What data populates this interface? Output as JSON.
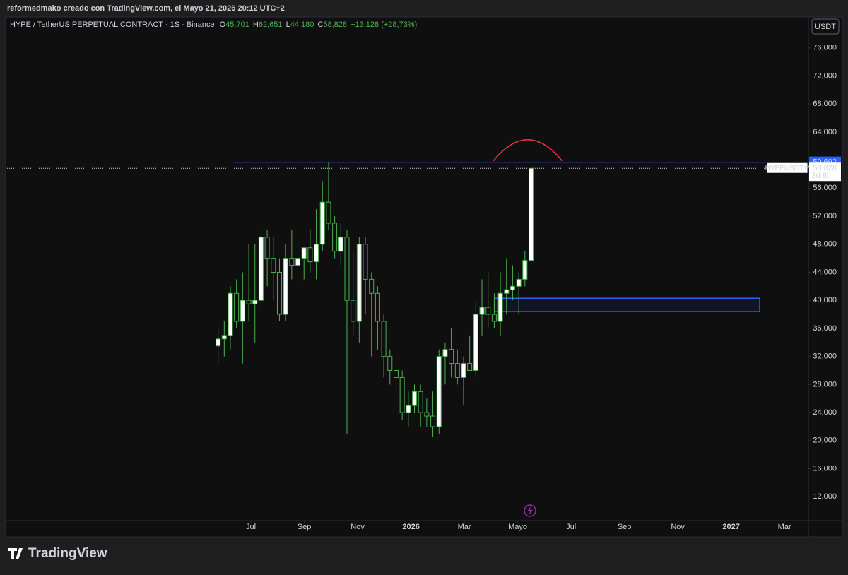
{
  "header": {
    "caption": "reformedmako creado con TradingView.com, el Mayo 21, 2026 20:12 UTC+2",
    "brand": "TradingView"
  },
  "chart_data": {
    "type": "candlestick",
    "legend": {
      "symbol": "HYPE / TetherUS PERPETUAL CONTRACT · 1S · Binance",
      "open_label": "O",
      "open": "45,701",
      "high_label": "H",
      "high": "62,651",
      "low_label": "L",
      "low": "44,180",
      "close_label": "C",
      "close": "58,828",
      "change": "+13,128 (+28,73%)"
    },
    "currency": "USDT",
    "x": [
      4.77,
      5.0,
      5.23,
      5.46,
      5.69,
      5.92,
      6.15,
      6.38,
      6.61,
      6.84,
      7.07,
      7.3,
      7.53,
      7.76,
      7.99,
      8.22,
      8.45,
      8.68,
      8.91,
      9.14,
      9.37,
      9.6,
      9.83,
      10.06,
      10.29,
      10.52,
      10.75,
      10.98,
      11.21,
      11.44,
      11.67,
      11.9,
      12.13,
      12.36,
      12.59,
      12.82,
      13.05,
      13.28,
      13.51,
      13.74,
      13.97,
      14.2,
      14.43,
      14.66,
      14.89,
      15.12,
      15.35,
      15.58,
      15.81,
      16.04,
      16.27,
      16.5
    ],
    "open": [
      33500,
      34500,
      35000,
      41000,
      37000,
      40000,
      39500,
      40000,
      49000,
      46000,
      44000,
      38000,
      46000,
      45000,
      46000,
      47500,
      45500,
      48000,
      54000,
      51000,
      47000,
      49000,
      40000,
      37000,
      48000,
      43000,
      41000,
      37000,
      32000,
      30000,
      29000,
      24000,
      25000,
      27000,
      24000,
      23500,
      22000,
      32000,
      33000,
      31000,
      29000,
      31000,
      30000,
      38000,
      39000,
      38000,
      37000,
      41000,
      41500,
      42000,
      43000,
      45701
    ],
    "high": [
      36000,
      37000,
      42000,
      43000,
      44000,
      48000,
      48000,
      50000,
      50000,
      49000,
      46000,
      48000,
      50000,
      49000,
      47000,
      50000,
      53000,
      57000,
      59700,
      52000,
      51000,
      50000,
      47000,
      49000,
      49000,
      44000,
      42000,
      38000,
      33000,
      31000,
      30000,
      27000,
      28000,
      28000,
      26000,
      27000,
      33000,
      34000,
      36000,
      33000,
      32000,
      35000,
      40000,
      43000,
      44000,
      41000,
      44000,
      46000,
      45000,
      44000,
      47000,
      62651
    ],
    "low": [
      31000,
      32000,
      33000,
      36000,
      31000,
      37000,
      34000,
      39000,
      42000,
      40000,
      37000,
      37000,
      43000,
      42000,
      43000,
      44000,
      43000,
      47000,
      50000,
      46000,
      45000,
      21000,
      35000,
      34000,
      38000,
      32000,
      33000,
      29000,
      28000,
      27000,
      23000,
      22000,
      24000,
      22000,
      22000,
      20500,
      21000,
      28000,
      29000,
      28000,
      25000,
      30000,
      29000,
      35000,
      36000,
      36000,
      35000,
      38000,
      40000,
      38000,
      42000,
      44180
    ],
    "close": [
      34500,
      35000,
      41000,
      37000,
      40000,
      39500,
      40000,
      49000,
      46000,
      44000,
      38000,
      46000,
      45000,
      46000,
      47500,
      45500,
      48000,
      54000,
      51000,
      47000,
      49000,
      40000,
      37000,
      48000,
      43000,
      41000,
      37000,
      32000,
      30000,
      29000,
      24000,
      25000,
      27000,
      24000,
      23500,
      22000,
      32000,
      33000,
      31000,
      29000,
      31000,
      30000,
      38000,
      39000,
      38000,
      37000,
      41000,
      41500,
      42000,
      43000,
      45700,
      58828
    ],
    "up_color": "#ffffff",
    "down_color": "#0f0f0f",
    "wick_color": "#4caf50",
    "xlim": [
      -3.14,
      26.87
    ],
    "xticks": [
      {
        "value": 6,
        "label": "Jul"
      },
      {
        "value": 8,
        "label": "Sep"
      },
      {
        "value": 10,
        "label": "Nov"
      },
      {
        "value": 12,
        "label": "2026"
      },
      {
        "value": 14,
        "label": "Mar"
      },
      {
        "value": 16,
        "label": "Mayo"
      },
      {
        "value": 18,
        "label": "Jul"
      },
      {
        "value": 20,
        "label": "Sep"
      },
      {
        "value": 22,
        "label": "Nov"
      },
      {
        "value": 24,
        "label": "2027"
      },
      {
        "value": 26,
        "label": "Mar"
      }
    ],
    "ylim": [
      8600,
      80000
    ],
    "yticks": [
      {
        "value": 12000,
        "label": "12,000"
      },
      {
        "value": 16000,
        "label": "16,000"
      },
      {
        "value": 20000,
        "label": "20,000"
      },
      {
        "value": 24000,
        "label": "24,000"
      },
      {
        "value": 28000,
        "label": "28,000"
      },
      {
        "value": 32000,
        "label": "32,000"
      },
      {
        "value": 36000,
        "label": "36,000"
      },
      {
        "value": 40000,
        "label": "40,000"
      },
      {
        "value": 44000,
        "label": "44,000"
      },
      {
        "value": 48000,
        "label": "48,000"
      },
      {
        "value": 52000,
        "label": "52,000"
      },
      {
        "value": 56000,
        "label": "56,000"
      },
      {
        "value": 64000,
        "label": "64,000"
      },
      {
        "value": 68000,
        "label": "68,000"
      },
      {
        "value": 72000,
        "label": "72,000"
      },
      {
        "value": 76000,
        "label": "76,000"
      }
    ],
    "hline": {
      "value": 59692,
      "label": "59,692",
      "x_start": 5.34,
      "color": "#2962ff"
    },
    "last_price": {
      "value": 58828,
      "label": "58,828",
      "symbol": "HYPEUSDT.P",
      "countdown": "3d 6h"
    },
    "zone": {
      "x": [
        15.14,
        25.07
      ],
      "y": [
        38400,
        40300
      ],
      "color": "#2962ff"
    },
    "arc": {
      "x": [
        15.09,
        17.66
      ],
      "base": 59900,
      "peak": 62900,
      "color": "#f23645"
    }
  }
}
